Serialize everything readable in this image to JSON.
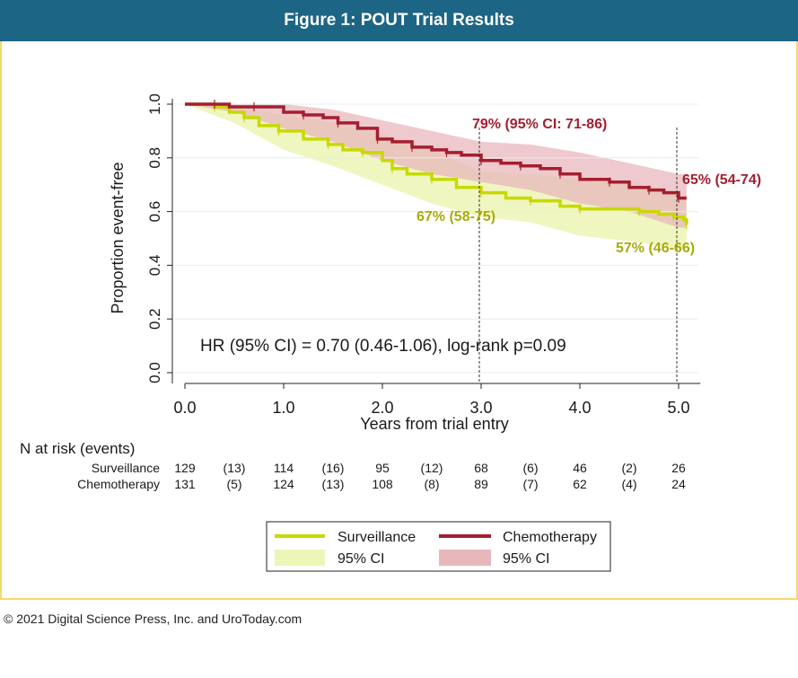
{
  "header": {
    "title": "Figure 1: POUT Trial Results"
  },
  "footer": {
    "copyright": "© 2021 Digital Science Press, Inc. and UroToday.com"
  },
  "colors": {
    "header_bg": "#1d6585",
    "frame_border": "#f6d86c",
    "surveillance": "#c7d900",
    "surveillance_ci": "#eef5b8",
    "chemotherapy": "#a51e2f",
    "chemotherapy_ci": "#e8b7bc",
    "surv_label": "#a6ac0c",
    "chemo_label": "#a51e2f"
  },
  "chart_data": {
    "type": "line",
    "subtype": "kaplan-meier",
    "xlabel": "Years from trial entry",
    "ylabel": "Proportion event-free",
    "xlim": [
      -0.1,
      5.2
    ],
    "ylim": [
      0,
      1.02
    ],
    "xticks": [
      0,
      1,
      2,
      3,
      4,
      5
    ],
    "xtick_labels": [
      "0.0",
      "1.0",
      "2.0",
      "3.0",
      "4.0",
      "5.0"
    ],
    "yticks": [
      0,
      0.2,
      0.4,
      0.6,
      0.8,
      1.0
    ],
    "ytick_labels": [
      "0.0",
      "0.2",
      "0.4",
      "0.6",
      "0.8",
      "1.0"
    ],
    "reference_lines_x": [
      3.0,
      5.0
    ],
    "annotation_hr": "HR (95% CI) = 0.70 (0.46-1.06), log-rank p=0.09",
    "series": [
      {
        "name": "Surveillance",
        "color": "#c7d900",
        "ci_color": "#eef5b8",
        "points": [
          [
            0,
            1.0
          ],
          [
            0.3,
            0.99
          ],
          [
            0.45,
            0.97
          ],
          [
            0.6,
            0.95
          ],
          [
            0.75,
            0.92
          ],
          [
            0.95,
            0.9
          ],
          [
            1.2,
            0.87
          ],
          [
            1.45,
            0.85
          ],
          [
            1.6,
            0.83
          ],
          [
            1.8,
            0.82
          ],
          [
            2.0,
            0.79
          ],
          [
            2.1,
            0.76
          ],
          [
            2.25,
            0.74
          ],
          [
            2.5,
            0.72
          ],
          [
            2.75,
            0.69
          ],
          [
            3.0,
            0.67
          ],
          [
            3.25,
            0.65
          ],
          [
            3.5,
            0.64
          ],
          [
            3.8,
            0.62
          ],
          [
            4.0,
            0.61
          ],
          [
            4.4,
            0.61
          ],
          [
            4.6,
            0.6
          ],
          [
            4.8,
            0.59
          ],
          [
            4.95,
            0.58
          ],
          [
            5.05,
            0.57
          ],
          [
            5.08,
            0.55
          ]
        ],
        "ci_upper": [
          [
            0,
            1.0
          ],
          [
            0.5,
            0.99
          ],
          [
            1.0,
            0.96
          ],
          [
            1.5,
            0.93
          ],
          [
            2.0,
            0.89
          ],
          [
            2.5,
            0.83
          ],
          [
            3.0,
            0.75
          ],
          [
            3.5,
            0.74
          ],
          [
            4.0,
            0.72
          ],
          [
            4.5,
            0.71
          ],
          [
            5.0,
            0.67
          ],
          [
            5.08,
            0.66
          ]
        ],
        "ci_lower": [
          [
            0,
            1.0
          ],
          [
            0.5,
            0.93
          ],
          [
            1.0,
            0.83
          ],
          [
            1.5,
            0.77
          ],
          [
            2.0,
            0.7
          ],
          [
            2.5,
            0.63
          ],
          [
            3.0,
            0.58
          ],
          [
            3.5,
            0.56
          ],
          [
            4.0,
            0.51
          ],
          [
            4.5,
            0.49
          ],
          [
            5.0,
            0.46
          ],
          [
            5.08,
            0.46
          ]
        ],
        "annotation": "67% (58-75)",
        "end_annotation": "57% (46-66)"
      },
      {
        "name": "Chemotherapy",
        "color": "#a51e2f",
        "ci_color": "#e8b7bc",
        "points": [
          [
            0,
            1.0
          ],
          [
            0.3,
            1.0
          ],
          [
            0.45,
            0.99
          ],
          [
            0.7,
            0.99
          ],
          [
            1.0,
            0.97
          ],
          [
            1.2,
            0.96
          ],
          [
            1.4,
            0.95
          ],
          [
            1.55,
            0.93
          ],
          [
            1.75,
            0.91
          ],
          [
            1.95,
            0.87
          ],
          [
            2.1,
            0.86
          ],
          [
            2.3,
            0.84
          ],
          [
            2.5,
            0.83
          ],
          [
            2.65,
            0.82
          ],
          [
            2.8,
            0.81
          ],
          [
            3.0,
            0.79
          ],
          [
            3.2,
            0.78
          ],
          [
            3.4,
            0.77
          ],
          [
            3.6,
            0.76
          ],
          [
            3.8,
            0.74
          ],
          [
            4.0,
            0.72
          ],
          [
            4.3,
            0.71
          ],
          [
            4.5,
            0.69
          ],
          [
            4.7,
            0.68
          ],
          [
            4.85,
            0.67
          ],
          [
            5.0,
            0.65
          ],
          [
            5.08,
            0.65
          ]
        ],
        "ci_upper": [
          [
            0,
            1.0
          ],
          [
            0.5,
            1.0
          ],
          [
            1.0,
            1.0
          ],
          [
            1.5,
            0.98
          ],
          [
            2.0,
            0.94
          ],
          [
            2.5,
            0.9
          ],
          [
            3.0,
            0.86
          ],
          [
            3.5,
            0.85
          ],
          [
            4.0,
            0.82
          ],
          [
            4.5,
            0.78
          ],
          [
            5.0,
            0.74
          ],
          [
            5.08,
            0.74
          ]
        ],
        "ci_lower": [
          [
            0,
            1.0
          ],
          [
            0.5,
            0.97
          ],
          [
            1.0,
            0.91
          ],
          [
            1.5,
            0.86
          ],
          [
            2.0,
            0.79
          ],
          [
            2.5,
            0.74
          ],
          [
            3.0,
            0.71
          ],
          [
            3.5,
            0.68
          ],
          [
            4.0,
            0.63
          ],
          [
            4.5,
            0.6
          ],
          [
            5.0,
            0.54
          ],
          [
            5.08,
            0.54
          ]
        ],
        "annotation": "79% (95% CI: 71-86)",
        "end_annotation": "65% (54-74)"
      }
    ],
    "risk_table": {
      "title": "N at risk (events)",
      "rows": [
        {
          "label": "Surveillance",
          "values": [
            "129",
            "(13)",
            "114",
            "(16)",
            "95",
            "(12)",
            "68",
            "(6)",
            "46",
            "(2)",
            "26"
          ]
        },
        {
          "label": "Chemotherapy",
          "values": [
            "131",
            "(5)",
            "124",
            "(13)",
            "108",
            "(8)",
            "89",
            "(7)",
            "62",
            "(4)",
            "24"
          ]
        }
      ]
    },
    "legend": {
      "placement": "bottom-center",
      "items": [
        {
          "label": "Surveillance",
          "kind": "line",
          "color": "#c7d900"
        },
        {
          "label": "Chemotherapy",
          "kind": "line",
          "color": "#a51e2f"
        },
        {
          "label": "95% CI",
          "kind": "band",
          "color": "#eef5b8"
        },
        {
          "label": "95% CI",
          "kind": "band",
          "color": "#e8b7bc"
        }
      ]
    }
  }
}
